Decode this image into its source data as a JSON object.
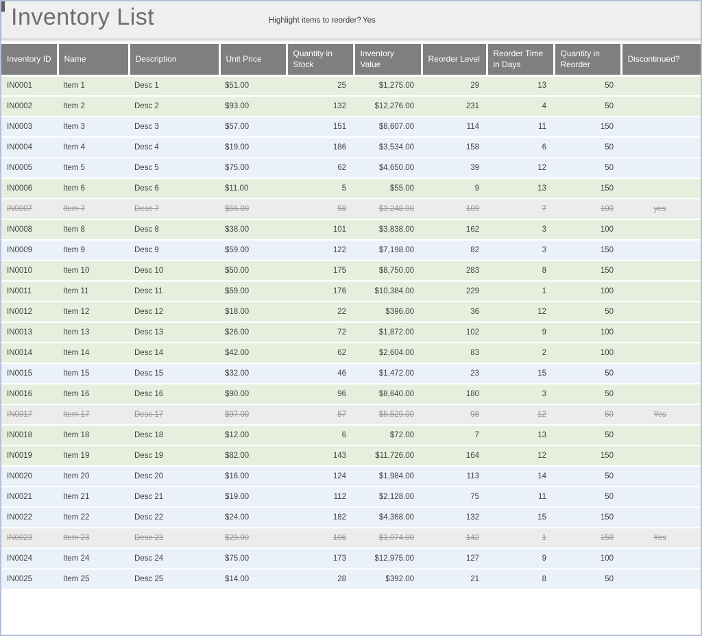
{
  "page": {
    "title": "Inventory List",
    "reorder_prompt": "Highlight items to reorder?",
    "reorder_value": "Yes"
  },
  "colors": {
    "reorder_row_highlight": "#e6efdd",
    "normal_row": "#eaf1f9",
    "discontinued_row": "#ececea",
    "header_bg": "#7f7f7f",
    "header_text": "#ffffff",
    "title_text": "#6d6d6d",
    "frame_border": "#b3c1d8"
  },
  "table": {
    "columns": [
      {
        "key": "id",
        "label": "Inventory ID",
        "align": "left"
      },
      {
        "key": "name",
        "label": "Name",
        "align": "left"
      },
      {
        "key": "description",
        "label": "Description",
        "align": "left"
      },
      {
        "key": "unit_price",
        "label": "Unit Price",
        "align": "left"
      },
      {
        "key": "qty_in_stock",
        "label": "Quantity in Stock",
        "align": "right"
      },
      {
        "key": "inventory_value",
        "label": "Inventory Value",
        "align": "right"
      },
      {
        "key": "reorder_level",
        "label": "Reorder Level",
        "align": "right"
      },
      {
        "key": "reorder_time",
        "label": "Reorder Time in Days",
        "align": "right"
      },
      {
        "key": "qty_in_reorder",
        "label": "Quantity in Reorder",
        "align": "right"
      },
      {
        "key": "discontinued",
        "label": "Discontinued?",
        "align": "center"
      }
    ],
    "rows": [
      {
        "id": "IN0001",
        "name": "Item 1",
        "description": "Desc 1",
        "unit_price": "$51.00",
        "qty_in_stock": "25",
        "inventory_value": "$1,275.00",
        "reorder_level": "29",
        "reorder_time": "13",
        "qty_in_reorder": "50",
        "discontinued": "",
        "status": "reorder"
      },
      {
        "id": "IN0002",
        "name": "Item 2",
        "description": "Desc 2",
        "unit_price": "$93.00",
        "qty_in_stock": "132",
        "inventory_value": "$12,276.00",
        "reorder_level": "231",
        "reorder_time": "4",
        "qty_in_reorder": "50",
        "discontinued": "",
        "status": "reorder"
      },
      {
        "id": "IN0003",
        "name": "Item 3",
        "description": "Desc 3",
        "unit_price": "$57.00",
        "qty_in_stock": "151",
        "inventory_value": "$8,607.00",
        "reorder_level": "114",
        "reorder_time": "11",
        "qty_in_reorder": "150",
        "discontinued": "",
        "status": "ok"
      },
      {
        "id": "IN0004",
        "name": "Item 4",
        "description": "Desc 4",
        "unit_price": "$19.00",
        "qty_in_stock": "186",
        "inventory_value": "$3,534.00",
        "reorder_level": "158",
        "reorder_time": "6",
        "qty_in_reorder": "50",
        "discontinued": "",
        "status": "ok"
      },
      {
        "id": "IN0005",
        "name": "Item 5",
        "description": "Desc 5",
        "unit_price": "$75.00",
        "qty_in_stock": "62",
        "inventory_value": "$4,650.00",
        "reorder_level": "39",
        "reorder_time": "12",
        "qty_in_reorder": "50",
        "discontinued": "",
        "status": "ok"
      },
      {
        "id": "IN0006",
        "name": "Item 6",
        "description": "Desc 6",
        "unit_price": "$11.00",
        "qty_in_stock": "5",
        "inventory_value": "$55.00",
        "reorder_level": "9",
        "reorder_time": "13",
        "qty_in_reorder": "150",
        "discontinued": "",
        "status": "reorder"
      },
      {
        "id": "IN0007",
        "name": "Item 7",
        "description": "Desc 7",
        "unit_price": "$56.00",
        "qty_in_stock": "58",
        "inventory_value": "$3,248.00",
        "reorder_level": "109",
        "reorder_time": "7",
        "qty_in_reorder": "100",
        "discontinued": "yes",
        "status": "discontinued"
      },
      {
        "id": "IN0008",
        "name": "Item 8",
        "description": "Desc 8",
        "unit_price": "$38.00",
        "qty_in_stock": "101",
        "inventory_value": "$3,838.00",
        "reorder_level": "162",
        "reorder_time": "3",
        "qty_in_reorder": "100",
        "discontinued": "",
        "status": "reorder"
      },
      {
        "id": "IN0009",
        "name": "Item 9",
        "description": "Desc 9",
        "unit_price": "$59.00",
        "qty_in_stock": "122",
        "inventory_value": "$7,198.00",
        "reorder_level": "82",
        "reorder_time": "3",
        "qty_in_reorder": "150",
        "discontinued": "",
        "status": "ok"
      },
      {
        "id": "IN0010",
        "name": "Item 10",
        "description": "Desc 10",
        "unit_price": "$50.00",
        "qty_in_stock": "175",
        "inventory_value": "$8,750.00",
        "reorder_level": "283",
        "reorder_time": "8",
        "qty_in_reorder": "150",
        "discontinued": "",
        "status": "reorder"
      },
      {
        "id": "IN0011",
        "name": "Item 11",
        "description": "Desc 11",
        "unit_price": "$59.00",
        "qty_in_stock": "176",
        "inventory_value": "$10,384.00",
        "reorder_level": "229",
        "reorder_time": "1",
        "qty_in_reorder": "100",
        "discontinued": "",
        "status": "reorder"
      },
      {
        "id": "IN0012",
        "name": "Item 12",
        "description": "Desc 12",
        "unit_price": "$18.00",
        "qty_in_stock": "22",
        "inventory_value": "$396.00",
        "reorder_level": "36",
        "reorder_time": "12",
        "qty_in_reorder": "50",
        "discontinued": "",
        "status": "reorder"
      },
      {
        "id": "IN0013",
        "name": "Item 13",
        "description": "Desc 13",
        "unit_price": "$26.00",
        "qty_in_stock": "72",
        "inventory_value": "$1,872.00",
        "reorder_level": "102",
        "reorder_time": "9",
        "qty_in_reorder": "100",
        "discontinued": "",
        "status": "reorder"
      },
      {
        "id": "IN0014",
        "name": "Item 14",
        "description": "Desc 14",
        "unit_price": "$42.00",
        "qty_in_stock": "62",
        "inventory_value": "$2,604.00",
        "reorder_level": "83",
        "reorder_time": "2",
        "qty_in_reorder": "100",
        "discontinued": "",
        "status": "reorder"
      },
      {
        "id": "IN0015",
        "name": "Item 15",
        "description": "Desc 15",
        "unit_price": "$32.00",
        "qty_in_stock": "46",
        "inventory_value": "$1,472.00",
        "reorder_level": "23",
        "reorder_time": "15",
        "qty_in_reorder": "50",
        "discontinued": "",
        "status": "ok"
      },
      {
        "id": "IN0016",
        "name": "Item 16",
        "description": "Desc 16",
        "unit_price": "$90.00",
        "qty_in_stock": "96",
        "inventory_value": "$8,640.00",
        "reorder_level": "180",
        "reorder_time": "3",
        "qty_in_reorder": "50",
        "discontinued": "",
        "status": "reorder"
      },
      {
        "id": "IN0017",
        "name": "Item 17",
        "description": "Desc 17",
        "unit_price": "$97.00",
        "qty_in_stock": "57",
        "inventory_value": "$5,529.00",
        "reorder_level": "98",
        "reorder_time": "12",
        "qty_in_reorder": "50",
        "discontinued": "Yes",
        "status": "discontinued"
      },
      {
        "id": "IN0018",
        "name": "Item 18",
        "description": "Desc 18",
        "unit_price": "$12.00",
        "qty_in_stock": "6",
        "inventory_value": "$72.00",
        "reorder_level": "7",
        "reorder_time": "13",
        "qty_in_reorder": "50",
        "discontinued": "",
        "status": "reorder"
      },
      {
        "id": "IN0019",
        "name": "Item 19",
        "description": "Desc 19",
        "unit_price": "$82.00",
        "qty_in_stock": "143",
        "inventory_value": "$11,726.00",
        "reorder_level": "164",
        "reorder_time": "12",
        "qty_in_reorder": "150",
        "discontinued": "",
        "status": "reorder"
      },
      {
        "id": "IN0020",
        "name": "Item 20",
        "description": "Desc 20",
        "unit_price": "$16.00",
        "qty_in_stock": "124",
        "inventory_value": "$1,984.00",
        "reorder_level": "113",
        "reorder_time": "14",
        "qty_in_reorder": "50",
        "discontinued": "",
        "status": "ok"
      },
      {
        "id": "IN0021",
        "name": "Item 21",
        "description": "Desc 21",
        "unit_price": "$19.00",
        "qty_in_stock": "112",
        "inventory_value": "$2,128.00",
        "reorder_level": "75",
        "reorder_time": "11",
        "qty_in_reorder": "50",
        "discontinued": "",
        "status": "ok"
      },
      {
        "id": "IN0022",
        "name": "Item 22",
        "description": "Desc 22",
        "unit_price": "$24.00",
        "qty_in_stock": "182",
        "inventory_value": "$4,368.00",
        "reorder_level": "132",
        "reorder_time": "15",
        "qty_in_reorder": "150",
        "discontinued": "",
        "status": "ok"
      },
      {
        "id": "IN0023",
        "name": "Item 23",
        "description": "Desc 23",
        "unit_price": "$29.00",
        "qty_in_stock": "106",
        "inventory_value": "$3,074.00",
        "reorder_level": "142",
        "reorder_time": "1",
        "qty_in_reorder": "150",
        "discontinued": "Yes",
        "status": "discontinued"
      },
      {
        "id": "IN0024",
        "name": "Item 24",
        "description": "Desc 24",
        "unit_price": "$75.00",
        "qty_in_stock": "173",
        "inventory_value": "$12,975.00",
        "reorder_level": "127",
        "reorder_time": "9",
        "qty_in_reorder": "100",
        "discontinued": "",
        "status": "ok"
      },
      {
        "id": "IN0025",
        "name": "Item 25",
        "description": "Desc 25",
        "unit_price": "$14.00",
        "qty_in_stock": "28",
        "inventory_value": "$392.00",
        "reorder_level": "21",
        "reorder_time": "8",
        "qty_in_reorder": "50",
        "discontinued": "",
        "status": "ok"
      }
    ]
  }
}
